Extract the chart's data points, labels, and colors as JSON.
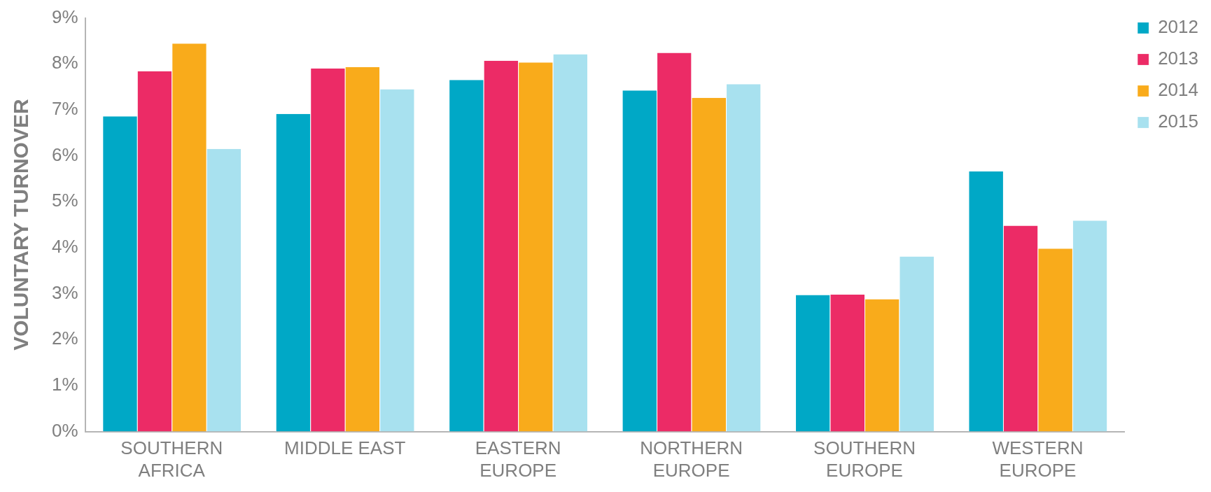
{
  "chart_data": {
    "type": "bar",
    "ylabel": "VOLUNTARY TURNOVER",
    "categories": [
      "SOUTHERN AFRICA",
      "MIDDLE EAST",
      "EASTERN EUROPE",
      "NORTHERN EUROPE",
      "SOUTHERN EUROPE",
      "WESTERN EUROPE"
    ],
    "series": [
      {
        "name": "2012",
        "color": "#00a8c6",
        "values": [
          6.86,
          6.91,
          7.65,
          7.42,
          2.97,
          5.66
        ]
      },
      {
        "name": "2013",
        "color": "#ec2b66",
        "values": [
          7.84,
          7.9,
          8.07,
          8.24,
          2.98,
          4.48
        ]
      },
      {
        "name": "2014",
        "color": "#f9ab1b",
        "values": [
          8.44,
          7.93,
          8.03,
          7.26,
          2.88,
          3.98
        ]
      },
      {
        "name": "2015",
        "color": "#a8e1ef",
        "values": [
          6.15,
          7.45,
          8.21,
          7.56,
          3.81,
          4.59
        ]
      }
    ],
    "ylim": [
      0,
      9
    ],
    "yticks": [
      {
        "value": 0,
        "label": "0%"
      },
      {
        "value": 1,
        "label": "1%"
      },
      {
        "value": 2,
        "label": "2%"
      },
      {
        "value": 3,
        "label": "3%"
      },
      {
        "value": 4,
        "label": "4%"
      },
      {
        "value": 5,
        "label": "5%"
      },
      {
        "value": 6,
        "label": "6%"
      },
      {
        "value": 7,
        "label": "7%"
      },
      {
        "value": 8,
        "label": "8%"
      },
      {
        "value": 9,
        "label": "9%"
      }
    ],
    "grid": false,
    "legend": "top right"
  }
}
